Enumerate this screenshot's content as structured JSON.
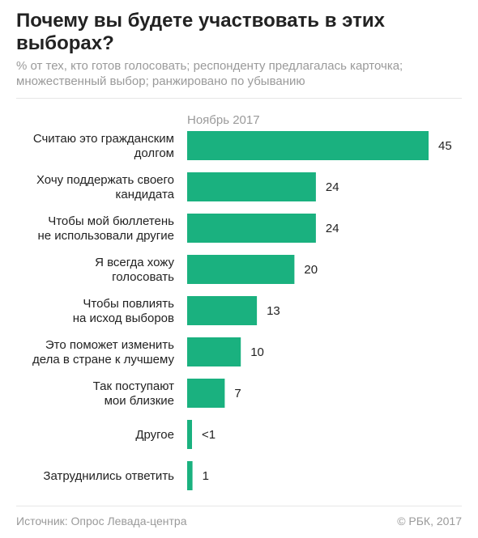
{
  "header": {
    "title": "Почему вы будете участвовать в этих выборах?",
    "subtitle": "% от тех, кто готов голосовать; респонденту предлагалась карточка; множественный выбор; ранжировано по убыванию"
  },
  "footer": {
    "source": "Источник: Опрос Левада-центра",
    "copyright": "© РБК, 2017"
  },
  "colors": {
    "bar": "#1ab17f",
    "text": "#222222",
    "muted": "#9a9a9a"
  },
  "chart_data": {
    "type": "bar",
    "orientation": "horizontal",
    "title": "Почему вы будете участвовать в этих выборах?",
    "series": [
      {
        "name": "Ноябрь 2017",
        "values": [
          45,
          24,
          24,
          20,
          13,
          10,
          7,
          0.5,
          1
        ],
        "value_labels": [
          "45",
          "24",
          "24",
          "20",
          "13",
          "10",
          "7",
          "<1",
          "1"
        ]
      }
    ],
    "categories": [
      [
        "Считаю это гражданским",
        "долгом"
      ],
      [
        "Хочу поддержать своего",
        "кандидата"
      ],
      [
        "Чтобы мой бюллетень",
        "не использовали другие"
      ],
      [
        "Я всегда хожу",
        "голосовать"
      ],
      [
        "Чтобы повлиять",
        "на исход выборов"
      ],
      [
        "Это поможет изменить",
        "дела в стране к лучшему"
      ],
      [
        "Так поступают",
        "мои близкие"
      ],
      [
        "Другое"
      ],
      [
        "Затруднились ответить"
      ]
    ],
    "xlim": [
      0,
      45
    ],
    "grid": false,
    "legend": "none"
  }
}
